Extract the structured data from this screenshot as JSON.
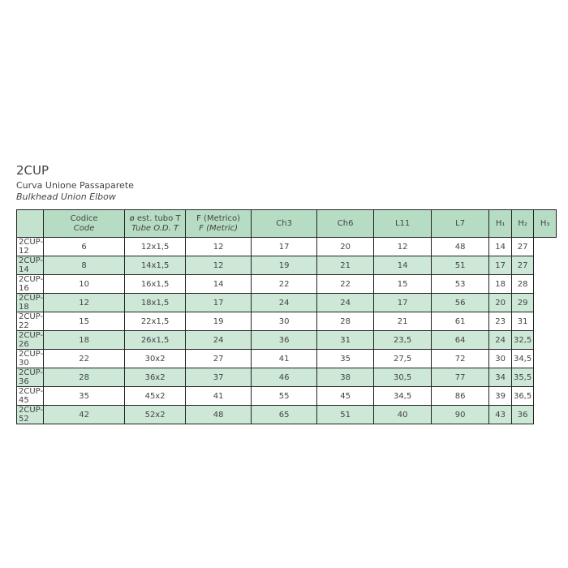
{
  "title": "2CUP",
  "subtitle_it": "Curva Unione Passaparete",
  "subtitle_en": "Bulkhead Union Elbow",
  "table": {
    "headers": [
      {
        "l1": "Codice",
        "l2": "Code"
      },
      {
        "l1": "ø est. tubo T",
        "l2": "Tube O.D. T"
      },
      {
        "l1": "F (Metrico)",
        "l2": "F (Metric)"
      },
      {
        "l1": "Ch3",
        "l2": ""
      },
      {
        "l1": "Ch6",
        "l2": ""
      },
      {
        "l1": "L11",
        "l2": ""
      },
      {
        "l1": "L7",
        "l2": ""
      },
      {
        "l1": "H₁",
        "l2": ""
      },
      {
        "l1": "H₂",
        "l2": ""
      },
      {
        "l1": "H₃",
        "l2": ""
      }
    ],
    "rows": [
      [
        "2CUP-12",
        "6",
        "12x1,5",
        "12",
        "17",
        "20",
        "12",
        "48",
        "14",
        "27"
      ],
      [
        "2CUP-14",
        "8",
        "14x1,5",
        "12",
        "19",
        "21",
        "14",
        "51",
        "17",
        "27"
      ],
      [
        "2CUP-16",
        "10",
        "16x1,5",
        "14",
        "22",
        "22",
        "15",
        "53",
        "18",
        "28"
      ],
      [
        "2CUP-18",
        "12",
        "18x1,5",
        "17",
        "24",
        "24",
        "17",
        "56",
        "20",
        "29"
      ],
      [
        "2CUP-22",
        "15",
        "22x1,5",
        "19",
        "30",
        "28",
        "21",
        "61",
        "23",
        "31"
      ],
      [
        "2CUP-26",
        "18",
        "26x1,5",
        "24",
        "36",
        "31",
        "23,5",
        "64",
        "24",
        "32,5"
      ],
      [
        "2CUP-30",
        "22",
        "30x2",
        "27",
        "41",
        "35",
        "27,5",
        "72",
        "30",
        "34,5"
      ],
      [
        "2CUP-36",
        "28",
        "36x2",
        "37",
        "46",
        "38",
        "30,5",
        "77",
        "34",
        "35,5"
      ],
      [
        "2CUP-45",
        "35",
        "45x2",
        "41",
        "55",
        "45",
        "34,5",
        "86",
        "39",
        "36,5"
      ],
      [
        "2CUP-52",
        "42",
        "52x2",
        "48",
        "65",
        "51",
        "40",
        "90",
        "43",
        "36"
      ]
    ]
  },
  "colors": {
    "header": "#b6dcc3",
    "alt_row": "#cde8d7"
  }
}
